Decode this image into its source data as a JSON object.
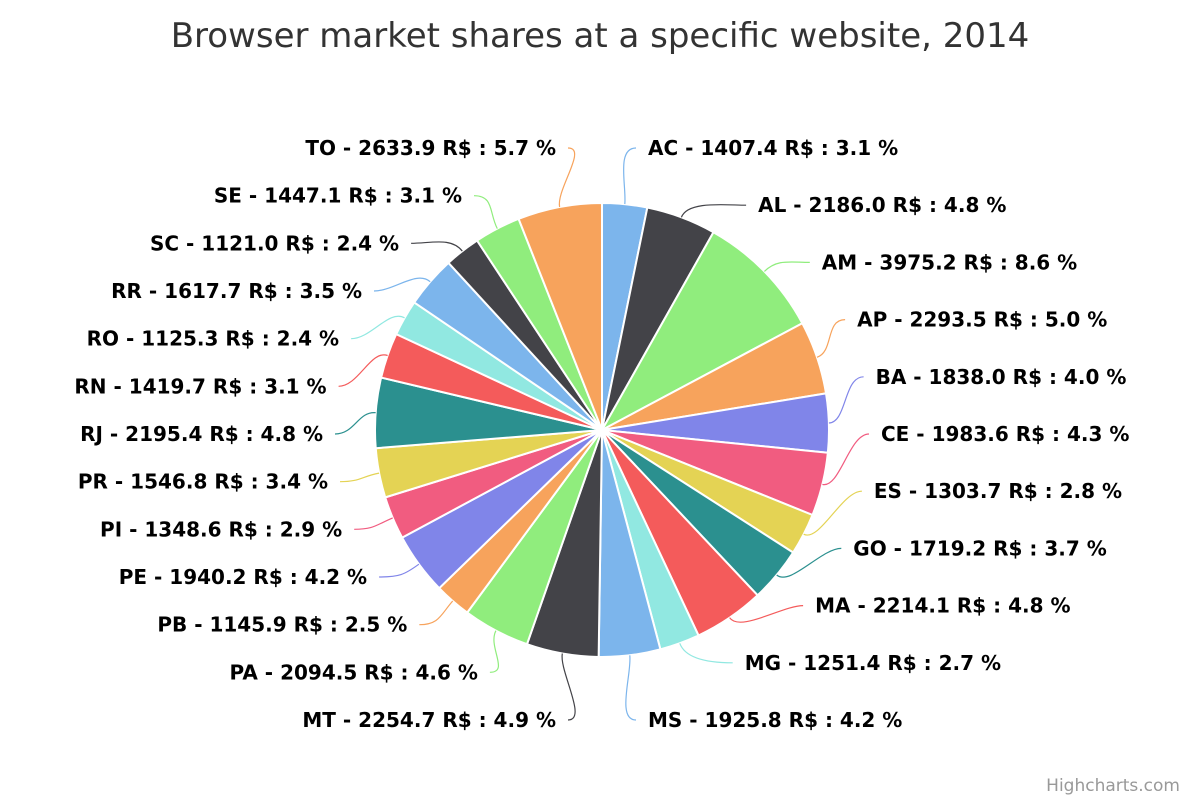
{
  "chart_data": {
    "type": "pie",
    "title": "Browser market shares at a specific website, 2014",
    "credits": "Highcharts.com",
    "label_format": "{name} - {value} R$ : {percent} %",
    "colors": [
      "#7cb5ec",
      "#434348",
      "#90ed7d",
      "#f7a35c",
      "#8085e9",
      "#f15c80",
      "#e4d354",
      "#2b908f",
      "#f45b5b",
      "#91e8e1"
    ],
    "slices": [
      {
        "name": "AC",
        "value": "1407.4",
        "percent": "3.1"
      },
      {
        "name": "AL",
        "value": "2186.0",
        "percent": "4.8"
      },
      {
        "name": "AM",
        "value": "3975.2",
        "percent": "8.6"
      },
      {
        "name": "AP",
        "value": "2293.5",
        "percent": "5.0"
      },
      {
        "name": "BA",
        "value": "1838.0",
        "percent": "4.0"
      },
      {
        "name": "CE",
        "value": "1983.6",
        "percent": "4.3"
      },
      {
        "name": "ES",
        "value": "1303.7",
        "percent": "2.8"
      },
      {
        "name": "GO",
        "value": "1719.2",
        "percent": "3.7"
      },
      {
        "name": "MA",
        "value": "2214.1",
        "percent": "4.8"
      },
      {
        "name": "MG",
        "value": "1251.4",
        "percent": "2.7"
      },
      {
        "name": "MS",
        "value": "1925.8",
        "percent": "4.2"
      },
      {
        "name": "MT",
        "value": "2254.7",
        "percent": "4.9"
      },
      {
        "name": "PA",
        "value": "2094.5",
        "percent": "4.6"
      },
      {
        "name": "PB",
        "value": "1145.9",
        "percent": "2.5"
      },
      {
        "name": "PE",
        "value": "1940.2",
        "percent": "4.2"
      },
      {
        "name": "PI",
        "value": "1348.6",
        "percent": "2.9"
      },
      {
        "name": "PR",
        "value": "1546.8",
        "percent": "3.4"
      },
      {
        "name": "RJ",
        "value": "2195.4",
        "percent": "4.8"
      },
      {
        "name": "RN",
        "value": "1419.7",
        "percent": "3.1"
      },
      {
        "name": "RO",
        "value": "1125.3",
        "percent": "2.4"
      },
      {
        "name": "RR",
        "value": "1617.7",
        "percent": "3.5"
      },
      {
        "name": "SC",
        "value": "1121.0",
        "percent": "2.4"
      },
      {
        "name": "SE",
        "value": "1447.1",
        "percent": "3.1"
      },
      {
        "name": "TO",
        "value": "2633.9",
        "percent": "5.7"
      }
    ]
  }
}
